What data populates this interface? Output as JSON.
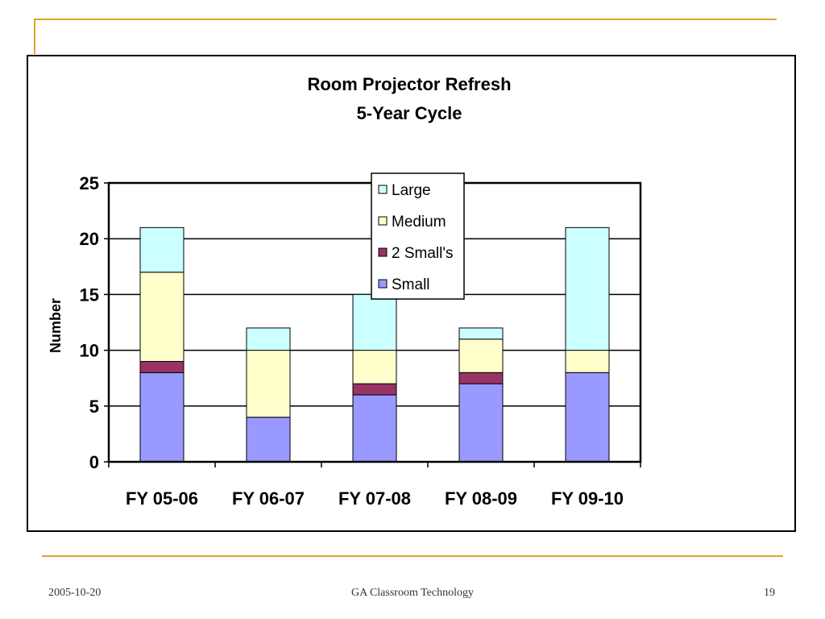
{
  "slide": {
    "footer_date": "2005-10-20",
    "footer_title": "GA Classroom Technology",
    "page_number": "19"
  },
  "colors": {
    "accent_line": "#e0a526",
    "Small": "#9999ff",
    "2 Small's": "#993366",
    "Medium": "#ffffcc",
    "Large": "#ccffff"
  },
  "chart_data": {
    "type": "bar",
    "stacked": true,
    "title": "Room Projector Refresh",
    "subtitle": "5-Year Cycle",
    "xlabel": "",
    "ylabel": "Number",
    "ylim": [
      0,
      25
    ],
    "yticks": [
      "0",
      "5",
      "10",
      "15",
      "20",
      "25"
    ],
    "grid": true,
    "legend_position": "top-center",
    "categories": [
      "FY 05-06",
      "FY 06-07",
      "FY 07-08",
      "FY 08-09",
      "FY 09-10"
    ],
    "series": [
      {
        "name": "Small",
        "values": [
          8,
          4,
          6,
          7,
          8
        ]
      },
      {
        "name": "2 Small's",
        "values": [
          1,
          0,
          1,
          1,
          0
        ]
      },
      {
        "name": "Medium",
        "values": [
          8,
          6,
          3,
          3,
          2
        ]
      },
      {
        "name": "Large",
        "values": [
          4,
          2,
          5,
          1,
          11
        ]
      }
    ],
    "legend_order": [
      "Large",
      "Medium",
      "2 Small's",
      "Small"
    ]
  }
}
